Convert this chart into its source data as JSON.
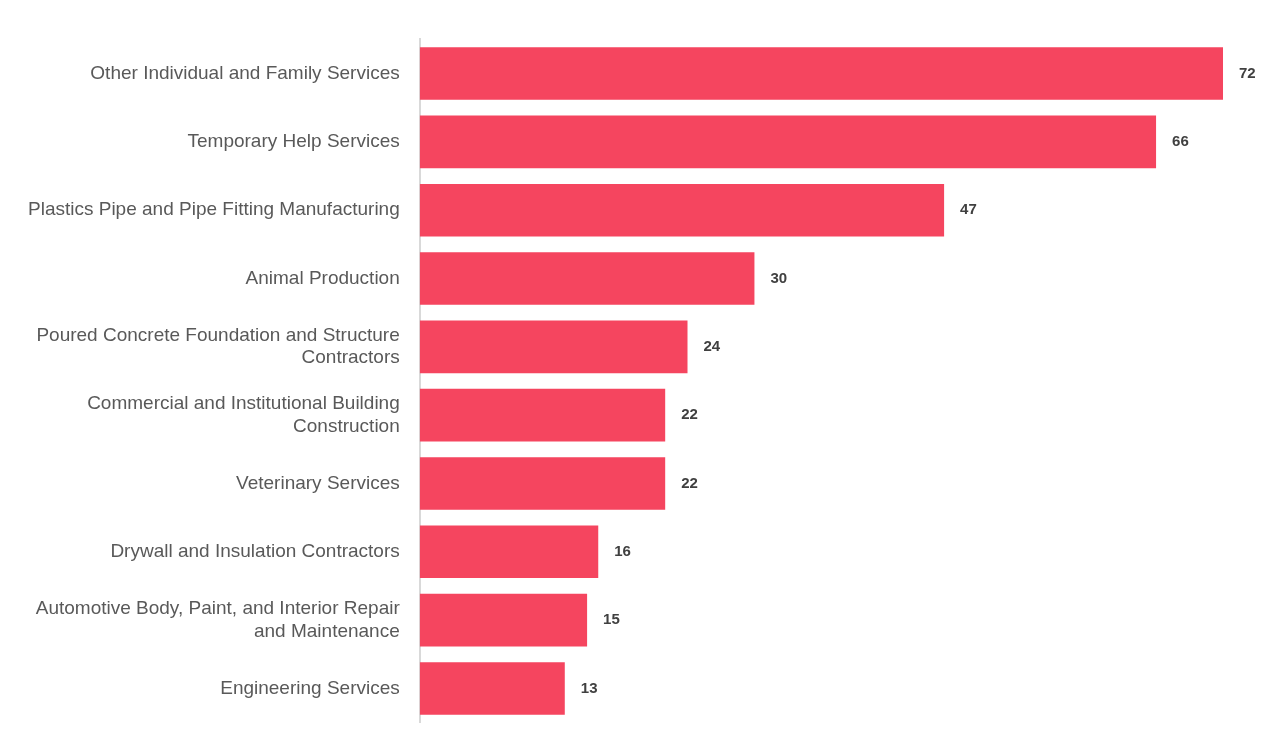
{
  "chart_data": {
    "type": "bar",
    "orientation": "horizontal",
    "categories": [
      "Other Individual and Family Services",
      "Temporary Help Services",
      "Plastics Pipe and Pipe Fitting Manufacturing",
      "Animal Production",
      "Poured Concrete Foundation and Structure Contractors",
      "Commercial and Institutional Building Construction",
      "Veterinary Services",
      "Drywall and Insulation Contractors",
      "Automotive Body, Paint, and Interior Repair and Maintenance",
      "Engineering Services"
    ],
    "values": [
      72,
      66,
      47,
      30,
      24,
      22,
      22,
      16,
      15,
      13
    ],
    "color": "#f5455f",
    "data_labels": true
  }
}
